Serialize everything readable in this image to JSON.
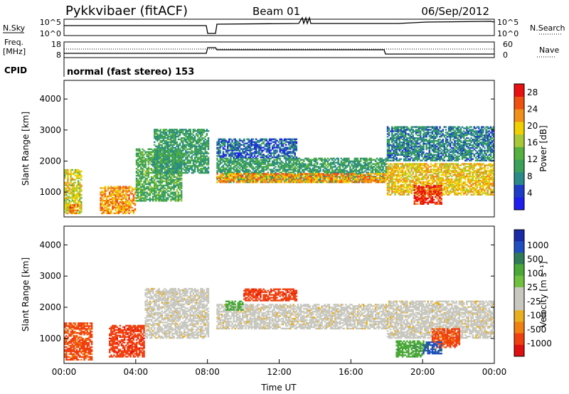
{
  "header": {
    "station": "Pykkvibaer (fitACF)",
    "beam": "Beam 01",
    "date": "06/Sep/2012",
    "cpid_label": "CPID",
    "cpid_value": "normal (fast stereo) 153"
  },
  "strips": {
    "nsky": {
      "left_label": "N.Sky",
      "ticks_left": [
        "10^5",
        "10^0"
      ],
      "right_label": "N.Search",
      "ticks_right": [
        "10^5",
        "10^0"
      ]
    },
    "freq": {
      "left_label_1": "Freq.",
      "left_label_2": "[MHz]",
      "ticks_left": [
        "18",
        "8"
      ],
      "right_label": "Nave",
      "ticks_right": [
        "60",
        "0"
      ]
    }
  },
  "colors": {
    "power": [
      "#1e1ef0",
      "#1e3cc8",
      "#2a8a8a",
      "#3aa05a",
      "#55b040",
      "#a8c838",
      "#f0d000",
      "#f09018",
      "#f05010",
      "#e81010"
    ],
    "velocity": [
      "#1a2aa8",
      "#2050c0",
      "#307a58",
      "#4aa838",
      "#70c040",
      "#c8c8c0",
      "#c8c8c0",
      "#e8b020",
      "#f08010",
      "#f04010",
      "#e01010"
    ]
  },
  "chart_data": [
    {
      "type": "heatmap",
      "name": "power",
      "title": "",
      "xlabel": "",
      "ylabel": "Slant Range [km]",
      "xlim": [
        "00:00",
        "24:00"
      ],
      "ylim": [
        200,
        4600
      ],
      "yticks": [
        "1000",
        "2000",
        "3000",
        "4000"
      ],
      "colorbar": {
        "label": "Power [dB]",
        "ticks": [
          "4",
          "8",
          "12",
          "16",
          "20",
          "24",
          "28"
        ],
        "range": [
          0,
          30
        ]
      },
      "bands": [
        {
          "t0": 0.0,
          "t1": 1.0,
          "r0": 300,
          "r1": 1700,
          "level": 18
        },
        {
          "t0": 0.3,
          "t1": 0.8,
          "r0": 300,
          "r1": 600,
          "level": 24
        },
        {
          "t0": 2.0,
          "t1": 4.0,
          "r0": 300,
          "r1": 1200,
          "level": 22
        },
        {
          "t0": 4.0,
          "t1": 6.5,
          "r0": 700,
          "r1": 2400,
          "level": 12
        },
        {
          "t0": 5.0,
          "t1": 8.0,
          "r0": 1600,
          "r1": 3000,
          "level": 10
        },
        {
          "t0": 8.5,
          "t1": 18.0,
          "r0": 1300,
          "r1": 2100,
          "level": 10
        },
        {
          "t0": 8.5,
          "t1": 18.0,
          "r0": 1300,
          "r1": 1600,
          "level": 22
        },
        {
          "t0": 8.5,
          "t1": 13.0,
          "r0": 2100,
          "r1": 2700,
          "level": 6
        },
        {
          "t0": 18.0,
          "t1": 24.0,
          "r0": 900,
          "r1": 1900,
          "level": 20
        },
        {
          "t0": 19.5,
          "t1": 21.0,
          "r0": 600,
          "r1": 1200,
          "level": 27
        },
        {
          "t0": 18.0,
          "t1": 24.0,
          "r0": 2000,
          "r1": 3100,
          "level": 8
        }
      ]
    },
    {
      "type": "heatmap",
      "name": "velocity",
      "title": "",
      "xlabel": "Time UT",
      "ylabel": "Slant Range [km]",
      "xlim": [
        "00:00",
        "24:00"
      ],
      "ylim": [
        200,
        4600
      ],
      "yticks": [
        "1000",
        "2000",
        "3000",
        "4000"
      ],
      "xticks": [
        "00:00",
        "04:00",
        "08:00",
        "12:00",
        "16:00",
        "20:00",
        "00:00"
      ],
      "colorbar": {
        "label": "Velocity [m s⁻¹]",
        "ticks": [
          "1000",
          "500",
          "100",
          "25",
          "-25",
          "-100",
          "-500",
          "-1000"
        ]
      },
      "bands": [
        {
          "t0": 0.0,
          "t1": 1.5,
          "r0": 300,
          "r1": 1500,
          "level": -300
        },
        {
          "t0": 2.5,
          "t1": 4.5,
          "r0": 400,
          "r1": 1400,
          "level": -400
        },
        {
          "t0": 4.5,
          "t1": 8.0,
          "r0": 1000,
          "r1": 2600,
          "level": 0
        },
        {
          "t0": 8.5,
          "t1": 18.0,
          "r0": 1300,
          "r1": 2100,
          "level": 0
        },
        {
          "t0": 10.0,
          "t1": 13.0,
          "r0": 2200,
          "r1": 2600,
          "level": -400
        },
        {
          "t0": 9.0,
          "t1": 10.0,
          "r0": 1900,
          "r1": 2200,
          "level": 150
        },
        {
          "t0": 18.0,
          "t1": 24.0,
          "r0": 1000,
          "r1": 2200,
          "level": 0
        },
        {
          "t0": 20.5,
          "t1": 22.0,
          "r0": 700,
          "r1": 1300,
          "level": -300
        },
        {
          "t0": 18.5,
          "t1": 20.0,
          "r0": 400,
          "r1": 900,
          "level": 200
        },
        {
          "t0": 20.0,
          "t1": 21.0,
          "r0": 500,
          "r1": 900,
          "level": 600
        }
      ]
    }
  ]
}
